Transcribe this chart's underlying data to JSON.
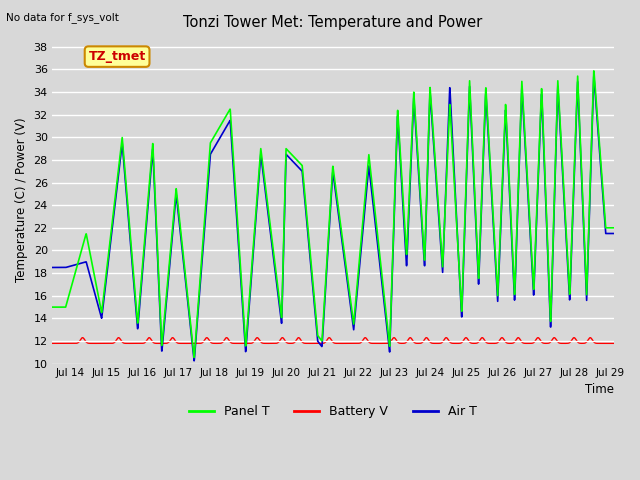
{
  "title": "Tonzi Tower Met: Temperature and Power",
  "top_left_text": "No data for f_sys_volt",
  "ylabel": "Temperature (C) / Power (V)",
  "xlabel": "Time",
  "ylim": [
    10,
    39
  ],
  "xlim": [
    13.5,
    29.1
  ],
  "xtick_labels": [
    "Jul 14",
    "Jul 15",
    "Jul 16",
    "Jul 17",
    "Jul 18",
    "Jul 19",
    "Jul 20",
    "Jul 21",
    "Jul 22",
    "Jul 23",
    "Jul 24",
    "Jul 25",
    "Jul 26",
    "Jul 27",
    "Jul 28",
    "Jul 29"
  ],
  "xtick_positions": [
    14,
    15,
    16,
    17,
    18,
    19,
    20,
    21,
    22,
    23,
    24,
    25,
    26,
    27,
    28,
    29
  ],
  "ytick_positions": [
    10,
    12,
    14,
    16,
    18,
    20,
    22,
    24,
    26,
    28,
    30,
    32,
    34,
    36,
    38
  ],
  "panel_t_color": "#00FF00",
  "battery_v_color": "#FF0000",
  "air_t_color": "#0000CC",
  "bg_color": "#D8D8D8",
  "grid_color": "#FFFFFF",
  "annotation_box_text": "TZ_tmet",
  "annotation_box_color": "#FFFF99",
  "annotation_box_edge": "#CC8800",
  "annotation_text_color": "#CC0000",
  "peak_days": [
    14.45,
    15.45,
    16.3,
    16.95,
    17.9,
    18.45,
    19.3,
    20.0,
    20.45,
    21.3,
    22.3,
    23.1,
    23.55,
    24.0,
    24.55,
    25.1,
    25.55,
    26.1,
    26.55,
    27.1,
    27.55,
    28.1,
    28.55
  ],
  "panel_peaks": [
    21.5,
    30.0,
    29.5,
    25.5,
    29.5,
    32.5,
    29.0,
    29.0,
    27.5,
    27.5,
    28.5,
    32.5,
    34.0,
    34.5,
    33.0,
    35.0,
    34.5,
    33.0,
    35.0,
    34.5,
    35.0,
    35.5,
    36.0
  ],
  "air_peaks": [
    19.0,
    29.5,
    29.0,
    25.0,
    28.5,
    31.5,
    28.5,
    28.5,
    27.0,
    27.0,
    27.5,
    32.0,
    33.5,
    34.0,
    34.5,
    34.5,
    34.0,
    32.5,
    34.5,
    34.0,
    34.5,
    35.0,
    35.5
  ],
  "trough_days": [
    13.88,
    14.88,
    15.88,
    16.55,
    17.45,
    18.88,
    19.88,
    20.88,
    21.0,
    21.88,
    22.88,
    23.35,
    23.85,
    24.35,
    24.88,
    25.35,
    25.88,
    26.35,
    26.88,
    27.35,
    27.88,
    28.35,
    28.88
  ],
  "panel_troughs": [
    15.0,
    14.5,
    13.5,
    11.5,
    10.5,
    11.5,
    14.0,
    12.5,
    12.0,
    13.5,
    11.5,
    19.5,
    19.0,
    18.5,
    14.5,
    17.5,
    16.0,
    16.0,
    16.5,
    13.5,
    16.0,
    16.0,
    22.0
  ],
  "air_troughs": [
    18.5,
    14.0,
    13.0,
    11.0,
    10.2,
    11.0,
    13.5,
    12.0,
    11.5,
    13.0,
    11.0,
    18.5,
    18.5,
    18.0,
    14.0,
    17.0,
    15.5,
    15.5,
    16.0,
    13.0,
    15.5,
    15.5,
    21.5
  ]
}
